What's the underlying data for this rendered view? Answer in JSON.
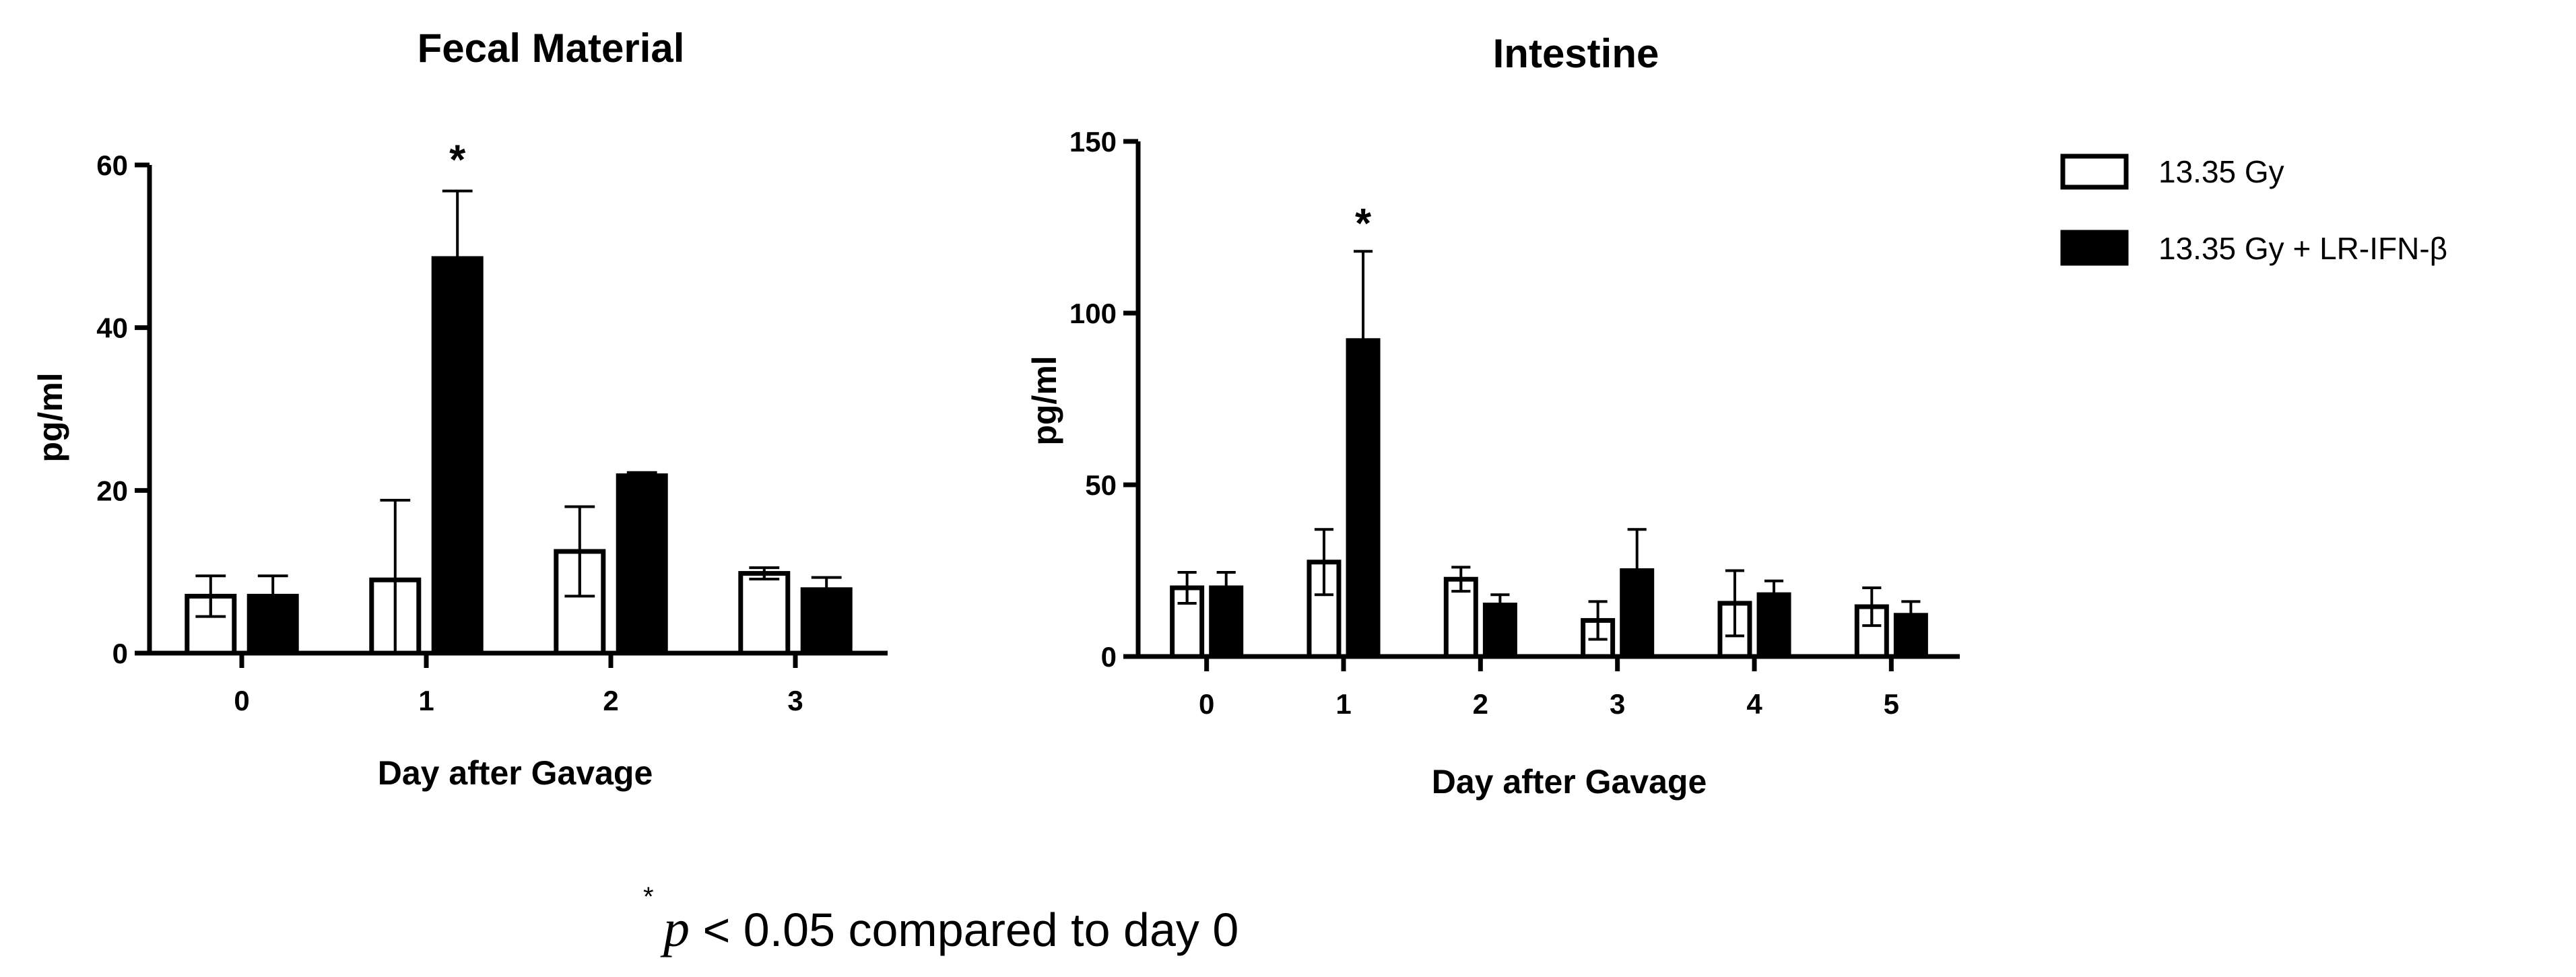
{
  "chart_data": [
    {
      "type": "bar",
      "title": "Fecal Material",
      "xlabel": "Day after Gavage",
      "ylabel": "pg/ml",
      "ylim": [
        0,
        60
      ],
      "yticks": [
        "0",
        "20",
        "40",
        "60"
      ],
      "categories": [
        "0",
        "1",
        "2",
        "3"
      ],
      "series": [
        {
          "name": "13.35 Gy",
          "values": [
            7,
            9,
            12.5,
            9.8
          ],
          "errors": [
            2.5,
            9.8,
            5.5,
            0.7
          ]
        },
        {
          "name": "13.35 Gy + LR-IFN-β",
          "values": [
            7,
            48.5,
            21.8,
            7.8
          ],
          "errors": [
            2.5,
            8.3,
            0.4,
            1.5
          ]
        }
      ],
      "annotations": [
        {
          "category": "1",
          "series": 1,
          "text": "*"
        }
      ],
      "grid": false
    },
    {
      "type": "bar",
      "title": "Intestine",
      "xlabel": "Day after Gavage",
      "ylabel": "pg/ml",
      "ylim": [
        0,
        150
      ],
      "yticks": [
        "0",
        "50",
        "100",
        "150"
      ],
      "categories": [
        "0",
        "1",
        "2",
        "3",
        "4",
        "5"
      ],
      "series": [
        {
          "name": "13.35 Gy",
          "values": [
            20,
            27.5,
            22.5,
            10.5,
            15.5,
            14.5
          ],
          "errors": [
            4.5,
            9.5,
            3.5,
            5.5,
            9.5,
            5.5
          ]
        },
        {
          "name": "13.35 Gy + LR-IFN-β",
          "values": [
            20,
            92,
            15,
            25,
            18,
            12
          ],
          "errors": [
            4.5,
            26,
            3,
            12,
            4,
            4
          ]
        }
      ],
      "annotations": [
        {
          "category": "1",
          "series": 1,
          "text": "*"
        }
      ],
      "grid": false
    }
  ],
  "legend": {
    "placement": "top-right",
    "entries": [
      {
        "label": "13.35 Gy",
        "style": "open"
      },
      {
        "label": "13.35 Gy + LR-IFN-β",
        "style": "filled"
      }
    ]
  },
  "footnote": {
    "marker": "*",
    "p_symbol": "p",
    "text": " < 0.05 compared to day 0"
  },
  "colors": {
    "filled_bar": "#000000",
    "open_bar_fill": "#ffffff",
    "stroke": "#000000"
  }
}
